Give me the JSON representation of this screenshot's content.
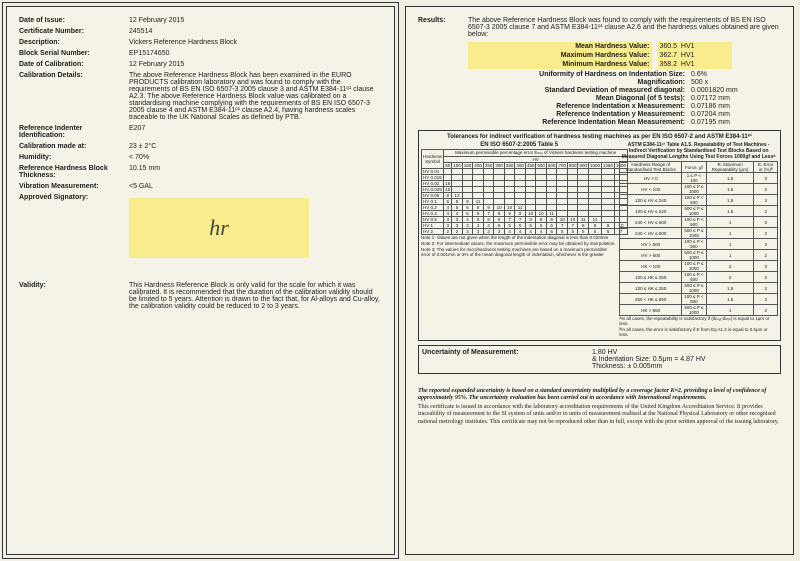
{
  "left": {
    "date_issue_lbl": "Date of Issue:",
    "date_issue": "12 February 2015",
    "cert_lbl": "Certificate Number:",
    "cert": "245514",
    "desc_lbl": "Description:",
    "desc": "Vickers Reference Hardness Block",
    "serial_lbl": "Block Serial Number:",
    "serial": "EP15174650",
    "cal_date_lbl": "Date of Calibration:",
    "cal_date": "12 February 2015",
    "cal_det_lbl": "Calibration Details:",
    "cal_det": "The above Reference Hardness Block has been examined in the EURO PRODUCTS calibration laboratory and was found to comply with the requirements of BS EN ISO 6507-3 2005 clause 3 and ASTM E384-11ᵉ¹ clause A2.3. The above Reference Hardness Block value was calibrated on a standardising machine complying with the requirements of BS EN ISO 6507-3 2005 clause 4 and ASTM E384-11ᵉ¹ clause A2.4, having hardness scales traceable to the UK National Scales as defined by PTB.",
    "ind_lbl": "Reference Indenter Identification:",
    "ind": "E207",
    "calat_lbl": "Calibration made at:",
    "calat": "23 ± 2°C",
    "hum_lbl": "Humidity:",
    "hum": "< 70%",
    "thk_lbl": "Reference Hardness Block Thickness:",
    "thk": "10.15 mm",
    "vib_lbl": "Vibration Measurement:",
    "vib": "<5 GAL",
    "sig_lbl": "Approved Signatory:",
    "valid_lbl": "Validity:",
    "valid": "This Hardness Reference Block is only valid for the scale for which it was calibrated. It is recommended that the duration of the calibration validity should be limited to 5 years. Attention is drawn to the fact that, for Al-alloys and Cu-alloy, the calibration validity could be reduced to 2 to 3 years."
  },
  "right": {
    "res_lbl": "Results:",
    "res_txt": "The above Reference Hardness Block was found to comply with the requirements of BS EN ISO 6507-3 2005 clause 7 and ASTM E384-11ᵉ¹ clause A2.6 and the hardness values obtained are given below:",
    "mean_lbl": "Mean Hardness Value:",
    "mean": "360.5",
    "unit": "HV1",
    "max_lbl": "Maximum Hardness Value:",
    "max": "362.7",
    "min_lbl": "Minimum Hardness Value:",
    "min": "358.2",
    "uhi_lbl": "Uniformity of Hardness on Indentation Size:",
    "uhi": "0.6%",
    "mag_lbl": "Magnification:",
    "mag": "500 x",
    "sd_lbl": "Standard Deviation of measured diagonal:",
    "sd": "0.0001820 mm",
    "md_lbl": "Mean Diagonal (of 5 tests):",
    "md": "0.07172 mm",
    "rx_lbl": "Reference Indentation x Measurement:",
    "rx": "0.07186 mm",
    "ry_lbl": "Reference Indentation y Measurement:",
    "ry": "0.07204 mm",
    "rm_lbl": "Reference Indentation Mean Measurement:",
    "rm": "0.07195 mm",
    "tolhdr": "Tolerances for indirect verification of hardness testing machines as per EN ISO 6507-2 and ASTM E384-11ᵉ¹",
    "tbl1_title": "EN ISO 6507-2:2005 Table 5",
    "tbl1_sub": "Maximum permissible percentage error Eₘₑₗ of Vickers hardness testing machine",
    "hard_sym": "Hardness Symbol",
    "hv_col": "HV",
    "scales": [
      "HV 0.01",
      "HV 0.015",
      "HV 0.02",
      "HV 0.025",
      "HV 0.05",
      "HV 0.1",
      "HV 0.2",
      "HV 0.3",
      "HV 0.5",
      "HV 1",
      "HV 2"
    ],
    "hv_hdrs": [
      "50",
      "100",
      "150",
      "200",
      "250",
      "300",
      "350",
      "400",
      "450",
      "500",
      "600",
      "700",
      "800",
      "900",
      "1000",
      "1250",
      "1500"
    ],
    "hv_rows": [
      [],
      [],
      [
        "16"
      ],
      [
        "15"
      ],
      [
        "8",
        "13"
      ],
      [
        "6",
        "8",
        "9",
        "11"
      ],
      [
        "4",
        "5",
        "6",
        "8",
        "9",
        "10",
        "10",
        "11"
      ],
      [
        "4",
        "4",
        "5",
        "6",
        "7",
        "8",
        "9",
        "9",
        "10",
        "10",
        "11"
      ],
      [
        "3",
        "3",
        "4",
        "5",
        "6",
        "6",
        "7",
        "7",
        "8",
        "8",
        "9",
        "10",
        "10",
        "11",
        "11"
      ],
      [
        "3",
        "3",
        "3",
        "4",
        "4",
        "5",
        "5",
        "5",
        "6",
        "6",
        "6",
        "7",
        "7",
        "8",
        "8",
        "9",
        "10"
      ],
      [
        "2",
        "2",
        "3",
        "3",
        "3",
        "3",
        "4",
        "4",
        "4",
        "4",
        "5",
        "5",
        "5",
        "5",
        "6",
        "6",
        "7"
      ]
    ],
    "tbl1_n1": "Note 1: Values are not given when the length of the indentation diagonal is less than 0.020mm",
    "tbl1_n2": "Note 2: For intermediate values, the maximum permissible error may be obtained by interpolation.",
    "tbl1_n3": "Note 3: The values for microhardness testing machines are based on a maximum permissible error of 0.001mm or 2% of the mean diagonal length of indentation, whichever is the greater",
    "tbl2_title": "ASTM E384-11ᵉ¹ Table A1.5. Repeatability of Test Machines - Indirect Verification by Standardised Test Blocks Based on Measured Diagonal Lengths Using Test Forces 1000gf and Lessᴬ",
    "tbl2_h1": "Hardness Range of Standardised Test Blocks",
    "tbl2_h2": "Force, gf",
    "tbl2_h3": "R, Maximum Repeatability (μm)",
    "tbl2_h4": "E, Error or (%)ᴮ",
    "tbl2_rows": [
      [
        "HV > 0",
        "1 ≤ P < 100",
        "1.5",
        "3"
      ],
      [
        "HV < 100",
        "100 ≤ P ≤ 1000",
        "1.5",
        "3"
      ],
      [
        "100 ≤ HV ≤ 240",
        "100 ≤ P < 500",
        "1.5",
        "3"
      ],
      [
        "100 ≤ HV ≤ 240",
        "500 ≤ P ≤ 1000",
        "1.5",
        "2"
      ],
      [
        "240 < HV ≤ 600",
        "100 ≤ P < 500",
        "1",
        "3"
      ],
      [
        "240 < HV ≤ 600",
        "500 ≤ P ≤ 1000",
        "1",
        "2"
      ],
      [
        "HV > 600",
        "100 ≤ P < 500",
        "1",
        "3"
      ],
      [
        "HV > 600",
        "500 ≤ P ≤ 1000",
        "1",
        "2"
      ],
      [
        "HK < 100",
        "100 ≤ P ≤ 1000",
        "2",
        "3"
      ],
      [
        "100 ≤ HK ≤ 250",
        "100 ≤ P < 500",
        "2",
        "3"
      ],
      [
        "100 ≤ HK ≤ 250",
        "500 ≤ P ≤ 1000",
        "1.5",
        "2"
      ],
      [
        "250 < HK ≤ 650",
        "100 ≤ P < 500",
        "1.5",
        "3"
      ],
      [
        "HK > 650",
        "500 ≤ P ≤ 1000",
        "1",
        "2"
      ]
    ],
    "tbl2_na": "ᴬIn all cases, the repeatability is satisfactory if (d̄ₘₐₓ-d̄ₘᵢₙ) is equal to 1μm or less.",
    "tbl2_nb": "ᴮIn all cases, the error is satisfactory if E from Eq A1.2 is equal to 0.5μm or less.",
    "um_lbl": "Uncertainty of Measurement:",
    "um1": "1.80 HV",
    "um2": "& Indentation Size: 0.5μm = 4.87 HV",
    "um3": "Thickness: ± 0.005mm",
    "foot1": "The reported expanded uncertainty is based on a standard uncertainty multiplied by a coverage factor K=2, providing a level of confidence of approximately 95%. The uncertainty evaluation has been carried out in accordance with International requirements.",
    "foot2": "This certificate is issued in accordance with the laboratory accreditation requirements of the United Kingdom Accreditation Service. It provides traceability of measurement to the SI system of units and/or to units of measurement realised at the National Physical Laboratory or other recognised national metrology institutes. This certificate may not be reproduced other than in full, except with the prior written approval of the issuing laboratory."
  }
}
